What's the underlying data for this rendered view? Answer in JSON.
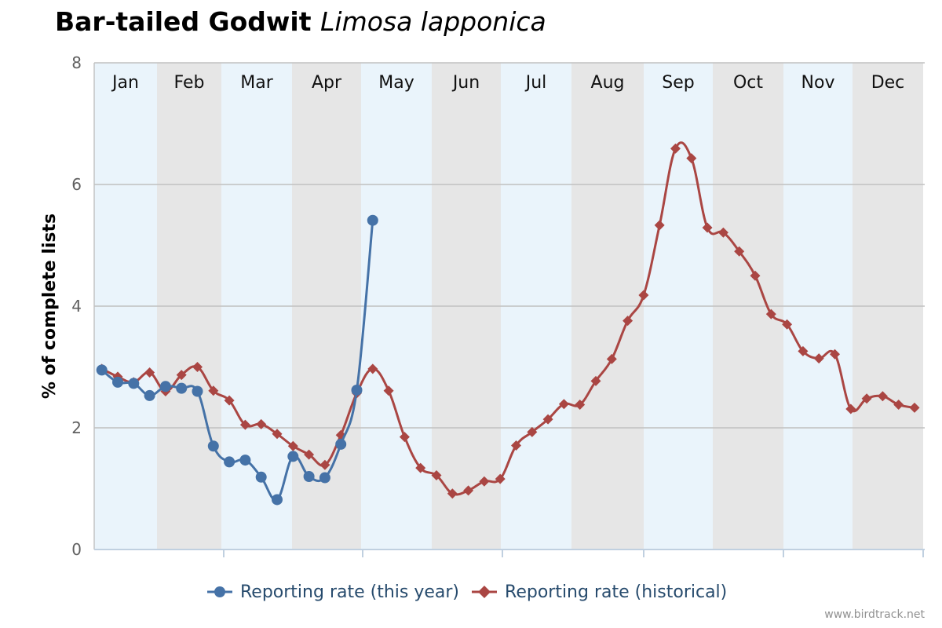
{
  "title": {
    "common_name": "Bar-tailed Godwit",
    "scientific_name": "Limosa lapponica"
  },
  "credit": "www.birdtrack.net",
  "colors": {
    "this_year": "#4572a7",
    "historical": "#aa4643",
    "band_light": "#eaf4fb",
    "band_dark": "#e6e6e6",
    "grid": "#c0c0c0",
    "axis_text": "#606060"
  },
  "chart_data": {
    "type": "line",
    "title": "Bar-tailed Godwit Limosa lapponica",
    "xlabel": "",
    "ylabel": "% of complete lists",
    "ylim": [
      0,
      8
    ],
    "yticks": [
      0,
      2,
      4,
      6,
      8
    ],
    "grid": true,
    "legend_position": "bottom",
    "months": [
      "Jan",
      "Feb",
      "Mar",
      "Apr",
      "May",
      "Jun",
      "Jul",
      "Aug",
      "Sep",
      "Oct",
      "Nov",
      "Dec"
    ],
    "x_unit": "week of year",
    "series": [
      {
        "name": "Reporting rate (this year)",
        "color": "#4572a7",
        "marker": "circle",
        "x": [
          1,
          2,
          3,
          4,
          5,
          6,
          7,
          8,
          9,
          10,
          11,
          12,
          13,
          14,
          15,
          16,
          17,
          18
        ],
        "values": [
          2.95,
          2.75,
          2.73,
          2.53,
          2.68,
          2.65,
          2.6,
          1.7,
          1.44,
          1.47,
          1.19,
          0.82,
          1.53,
          1.2,
          1.18,
          1.73,
          2.62,
          5.41
        ]
      },
      {
        "name": "Reporting rate (historical)",
        "color": "#aa4643",
        "marker": "diamond",
        "x": [
          1,
          2,
          3,
          4,
          5,
          6,
          7,
          8,
          9,
          10,
          11,
          12,
          13,
          14,
          15,
          16,
          17,
          18,
          19,
          20,
          21,
          22,
          23,
          24,
          25,
          26,
          27,
          28,
          29,
          30,
          31,
          32,
          33,
          34,
          35,
          36,
          37,
          38,
          39,
          40,
          41,
          42,
          43,
          44,
          45,
          46,
          47,
          48,
          49,
          50,
          51,
          52
        ],
        "values": [
          2.97,
          2.84,
          2.75,
          2.91,
          2.6,
          2.87,
          3.0,
          2.61,
          2.45,
          2.05,
          2.06,
          1.9,
          1.7,
          1.56,
          1.39,
          1.88,
          2.57,
          2.97,
          2.61,
          1.85,
          1.34,
          1.22,
          0.92,
          0.97,
          1.12,
          1.16,
          1.71,
          1.93,
          2.14,
          2.39,
          2.38,
          2.77,
          3.13,
          3.76,
          4.18,
          5.33,
          6.59,
          6.43,
          5.29,
          5.21,
          4.9,
          4.5,
          3.87,
          3.7,
          3.26,
          3.14,
          3.21,
          2.31,
          2.48,
          2.52,
          2.38,
          2.33
        ]
      }
    ]
  }
}
